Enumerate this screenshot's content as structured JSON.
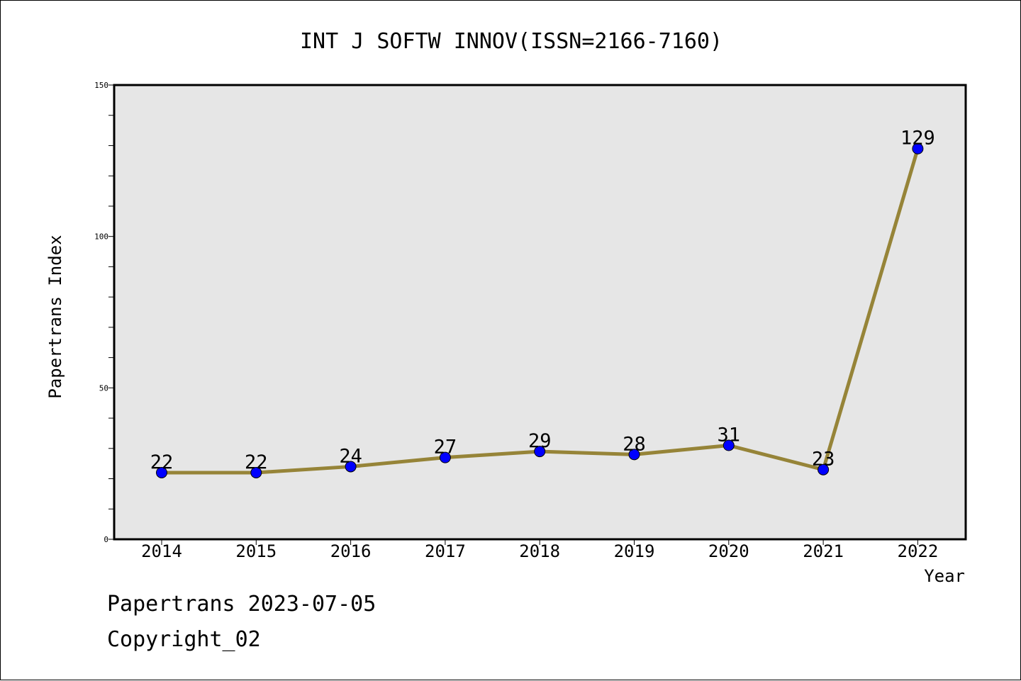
{
  "chart_data": {
    "type": "line",
    "title": "INT J SOFTW INNOV(ISSN=2166-7160)",
    "xlabel": "Year",
    "ylabel": "Papertrans Index",
    "categories": [
      "2014",
      "2015",
      "2016",
      "2017",
      "2018",
      "2019",
      "2020",
      "2021",
      "2022"
    ],
    "series": [
      {
        "values": [
          22,
          22,
          24,
          27,
          29,
          28,
          31,
          23,
          129
        ]
      }
    ],
    "data_labels": [
      "22",
      "22",
      "24",
      "27",
      "29",
      "28",
      "31",
      "23",
      "129"
    ],
    "ylim": [
      0,
      150
    ],
    "yticks": [
      "0",
      "50",
      "100",
      "150"
    ],
    "grid": false,
    "line_color": "#968438",
    "marker_color": "#0000ff",
    "plot_background": "#e6e6e6"
  },
  "footer": {
    "line1": "Papertrans 2023-07-05",
    "line2": "Copyright_02"
  }
}
